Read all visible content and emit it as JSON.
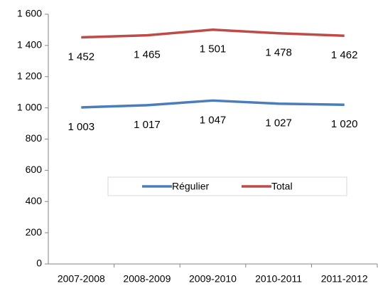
{
  "chart_data": {
    "type": "line",
    "categories": [
      "2007-2008",
      "2008-2009",
      "2009-2010",
      "2010-2011",
      "2011-2012"
    ],
    "series": [
      {
        "name": "Régulier",
        "color": "#4a7ebb",
        "values": [
          1003,
          1017,
          1047,
          1027,
          1020
        ],
        "value_labels": [
          "1 003",
          "1 017",
          "1 047",
          "1 027",
          "1 020"
        ]
      },
      {
        "name": "Total",
        "color": "#be4b48",
        "values": [
          1452,
          1465,
          1501,
          1478,
          1462
        ],
        "value_labels": [
          "1 452",
          "1 465",
          "1 501",
          "1 478",
          "1 462"
        ]
      }
    ],
    "ylim": [
      0,
      1600
    ],
    "yticks": [
      0,
      200,
      400,
      600,
      800,
      {
        "value": 1000,
        "label": "1 000"
      },
      {
        "value": 1200,
        "label": "1 200"
      },
      {
        "value": 1400,
        "label": "1 400"
      },
      {
        "value": 1600,
        "label": "1 600"
      }
    ],
    "grid": false,
    "legend": "center"
  }
}
